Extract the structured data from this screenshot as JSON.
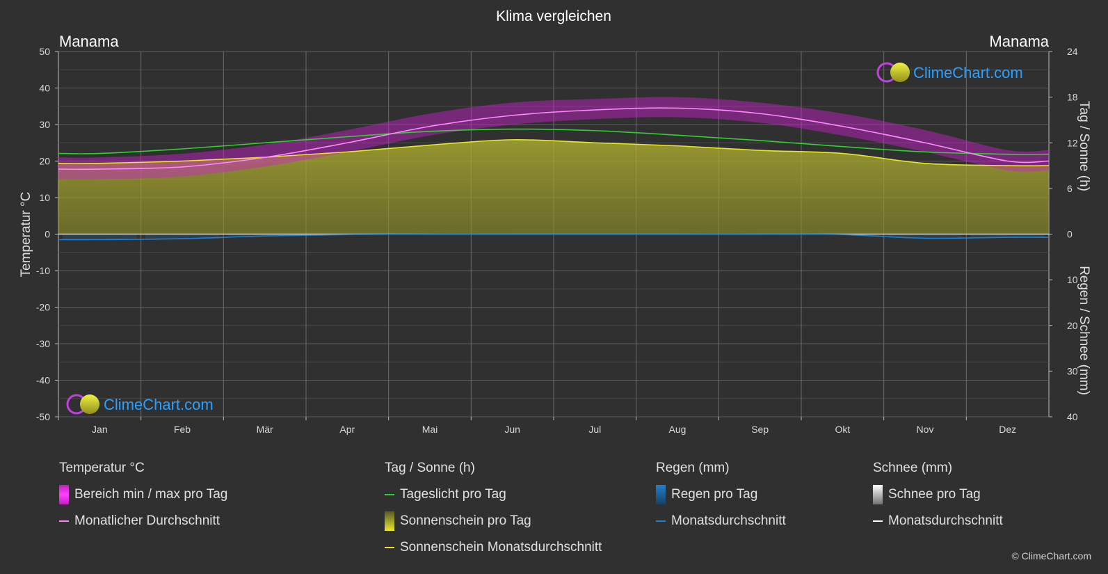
{
  "header": {
    "title": "Klima vergleichen",
    "location_left": "Manama",
    "location_right": "Manama"
  },
  "axes": {
    "left_label": "Temperatur °C",
    "right_top_label": "Tag / Sonne (h)",
    "right_bottom_label": "Regen / Schnee (mm)",
    "left_ticks": [
      "50",
      "40",
      "30",
      "20",
      "10",
      "0",
      "-10",
      "-20",
      "-30",
      "-40",
      "-50"
    ],
    "right_top_ticks": [
      "24",
      "18",
      "12",
      "6",
      "0"
    ],
    "right_bottom_ticks": [
      "10",
      "20",
      "30",
      "40"
    ]
  },
  "colors": {
    "background": "#303030",
    "temp_range": "#e020e0",
    "temp_avg": "#ff80ff",
    "daylight": "#30d030",
    "sunshine_fill": "#b8b830",
    "sunshine_avg": "#e8e820",
    "rain": "#2080d0",
    "snow": "#ffffff"
  },
  "logo": {
    "text": "ClimeChart.com"
  },
  "chart_data": {
    "type": "line",
    "x": [
      "Jan",
      "Feb",
      "Mär",
      "Apr",
      "Mai",
      "Jun",
      "Jul",
      "Aug",
      "Sep",
      "Okt",
      "Nov",
      "Dez"
    ],
    "ylim_temperature": [
      -50,
      50
    ],
    "ylim_daylight_hours": [
      0,
      24
    ],
    "ylim_precip_mm": [
      0,
      40
    ],
    "grid": true,
    "series": [
      {
        "name": "Monatlicher Durchschnitt",
        "unit": "°C",
        "values": [
          17.8,
          18.4,
          21.0,
          25.0,
          29.5,
          32.5,
          34.0,
          34.5,
          33.0,
          29.5,
          25.0,
          20.0
        ]
      },
      {
        "name": "Bereich min / max pro Tag (min)",
        "unit": "°C",
        "values": [
          15.0,
          15.8,
          18.5,
          22.5,
          27.0,
          30.0,
          31.5,
          32.0,
          30.5,
          27.0,
          22.5,
          17.5
        ]
      },
      {
        "name": "Bereich min / max pro Tag (max)",
        "unit": "°C",
        "values": [
          21.0,
          22.0,
          24.5,
          28.5,
          33.0,
          36.0,
          37.0,
          37.5,
          36.0,
          33.0,
          28.5,
          23.0
        ]
      },
      {
        "name": "Tageslicht pro Tag",
        "unit": "h",
        "values": [
          10.6,
          11.2,
          12.0,
          12.8,
          13.5,
          13.8,
          13.6,
          13.0,
          12.3,
          11.5,
          10.8,
          10.5
        ]
      },
      {
        "name": "Sonnenschein Monatsdurchschnitt",
        "unit": "h",
        "values": [
          9.3,
          9.6,
          10.1,
          10.8,
          11.7,
          12.4,
          12.0,
          11.6,
          11.0,
          10.6,
          9.3,
          9.0
        ]
      },
      {
        "name": "Regen Monatsdurchschnitt",
        "unit": "mm",
        "values": [
          1.2,
          1.0,
          0.4,
          0.1,
          0.0,
          0.0,
          0.0,
          0.0,
          0.0,
          0.1,
          0.9,
          0.7
        ]
      }
    ]
  },
  "legend": {
    "columns": [
      {
        "head": "Temperatur °C",
        "items": [
          {
            "label": "Bereich min / max pro Tag",
            "swatch": "range"
          },
          {
            "label": "Monatlicher Durchschnitt",
            "swatch": "temp-line"
          }
        ]
      },
      {
        "head": "Tag / Sonne (h)",
        "items": [
          {
            "label": "Tageslicht pro Tag",
            "swatch": "daylight-line"
          },
          {
            "label": "Sonnenschein pro Tag",
            "swatch": "sun-box"
          },
          {
            "label": "Sonnenschein Monatsdurchschnitt",
            "swatch": "sun-line"
          }
        ]
      },
      {
        "head": "Regen (mm)",
        "items": [
          {
            "label": "Regen pro Tag",
            "swatch": "rain-box"
          },
          {
            "label": "Monatsdurchschnitt",
            "swatch": "rain-line"
          }
        ]
      },
      {
        "head": "Schnee (mm)",
        "items": [
          {
            "label": "Schnee pro Tag",
            "swatch": "snow-box"
          },
          {
            "label": "Monatsdurchschnitt",
            "swatch": "snow-line"
          }
        ]
      }
    ]
  },
  "copyright": "© ClimeChart.com"
}
